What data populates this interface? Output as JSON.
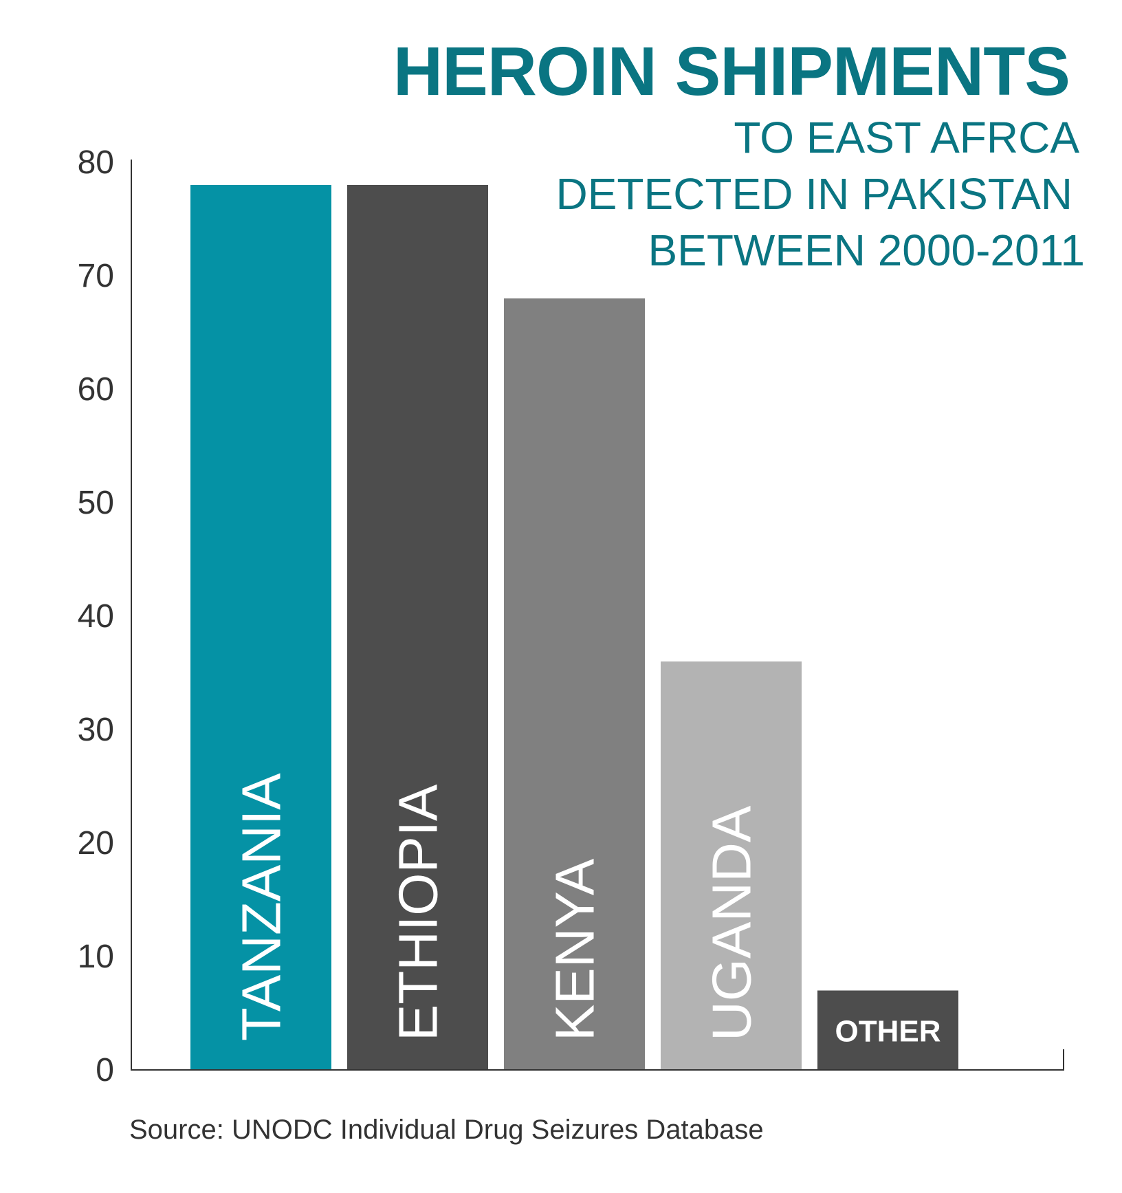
{
  "chart_data": {
    "type": "bar",
    "title": "HEROIN SHIPMENTS",
    "subtitle": [
      "TO EAST AFRCA",
      "DETECTED IN PAKISTAN",
      "BETWEEN 2000-2011"
    ],
    "categories": [
      "TANZANIA",
      "ETHIOPIA",
      "KENYA",
      "UGANDA",
      "OTHER"
    ],
    "values": [
      78,
      78,
      68,
      36,
      7
    ],
    "bar_colors": [
      "#0592a5",
      "#4d4d4d",
      "#808080",
      "#b3b3b3",
      "#4d4d4d"
    ],
    "y_ticks": [
      "0",
      "10",
      "20",
      "30",
      "40",
      "50",
      "60",
      "70",
      "80"
    ],
    "ylim": [
      0,
      80
    ],
    "grid": false,
    "source": "Source: UNODC Individual Drug Seizures Database",
    "colors": {
      "title": "#0a7582",
      "axis": "#333333",
      "text": "#333333",
      "bar_label": "#ffffff"
    }
  }
}
